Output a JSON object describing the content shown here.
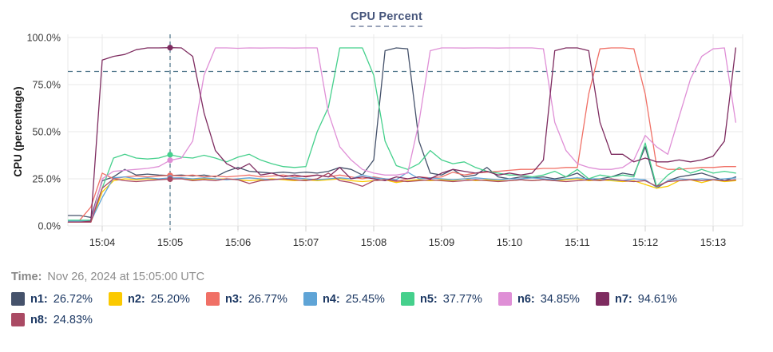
{
  "header": {
    "title": "CPU Percent"
  },
  "footer": {
    "time_label": "Time:",
    "time_value": "Nov 26, 2024 at 15:05:00 UTC"
  },
  "legend": {
    "items": [
      {
        "label": "n1:",
        "value": "26.72%",
        "color": "#45526b"
      },
      {
        "label": "n2:",
        "value": "25.20%",
        "color": "#fbc900"
      },
      {
        "label": "n3:",
        "value": "26.77%",
        "color": "#f07066"
      },
      {
        "label": "n4:",
        "value": "25.45%",
        "color": "#5fa4d6"
      },
      {
        "label": "n5:",
        "value": "37.77%",
        "color": "#45d08c"
      },
      {
        "label": "n6:",
        "value": "34.85%",
        "color": "#df8fd6"
      },
      {
        "label": "n7:",
        "value": "94.61%",
        "color": "#7e2c60"
      },
      {
        "label": "n8:",
        "value": "24.83%",
        "color": "#aa4a64"
      }
    ]
  },
  "chart_data": {
    "type": "line",
    "title": "CPU Percent",
    "ylabel": "CPU (percentage)",
    "ylim": [
      0,
      100
    ],
    "grid": true,
    "legend_position": "bottom",
    "y_ticks": [
      {
        "v": 0,
        "label": "0.0%"
      },
      {
        "v": 25,
        "label": "25.0%"
      },
      {
        "v": 50,
        "label": "50.0%"
      },
      {
        "v": 75,
        "label": "75.0%"
      },
      {
        "v": 100,
        "label": "100.0%"
      }
    ],
    "x_ticks": [
      {
        "t": 4,
        "label": "15:04"
      },
      {
        "t": 5,
        "label": "15:05"
      },
      {
        "t": 6,
        "label": "15:06"
      },
      {
        "t": 7,
        "label": "15:07"
      },
      {
        "t": 8,
        "label": "15:08"
      },
      {
        "t": 9,
        "label": "15:09"
      },
      {
        "t": 10,
        "label": "15:10"
      },
      {
        "t": 11,
        "label": "15:11"
      },
      {
        "t": 12,
        "label": "15:12"
      },
      {
        "t": 13,
        "label": "15:13"
      }
    ],
    "t_start": 3.5,
    "t_step": 0.1666667,
    "threshold_value": 82,
    "crosshair": {
      "t": 5,
      "index": 9,
      "label": "15:05"
    },
    "grid_color": "#e8e8e8",
    "guide_color": "#4a7187",
    "series": [
      {
        "name": "n1",
        "color": "#45526b",
        "values": [
          5.5,
          5.5,
          4.5,
          24,
          26,
          30,
          27,
          27.5,
          27,
          26.72,
          27,
          26.5,
          27,
          26,
          29,
          31,
          29,
          28.5,
          28,
          28.5,
          28,
          28.5,
          28,
          29,
          31,
          30,
          27,
          35,
          93,
          94.5,
          94,
          45,
          28,
          27,
          30,
          26,
          27,
          31,
          26,
          25,
          26,
          25.5,
          26,
          25,
          26,
          28,
          24,
          25,
          26,
          28,
          27,
          42,
          20,
          24,
          26,
          27,
          28,
          26,
          24,
          26
        ]
      },
      {
        "name": "n2",
        "color": "#fbc900",
        "values": [
          2,
          2,
          2,
          18,
          24,
          25,
          24.5,
          25,
          24.8,
          25.2,
          25,
          24.5,
          25,
          24.8,
          25,
          24.5,
          24,
          24.5,
          25,
          24.5,
          24,
          24.5,
          24,
          24.5,
          25,
          24,
          23.5,
          24,
          24.5,
          23,
          24,
          24.5,
          24,
          24.5,
          24,
          25,
          24,
          24.5,
          24,
          24,
          24.5,
          24,
          24.5,
          24,
          24.5,
          25,
          24,
          24.5,
          24,
          23.5,
          24,
          22,
          20,
          21,
          24,
          24.5,
          23,
          24.5,
          23.5,
          24
        ]
      },
      {
        "name": "n3",
        "color": "#f07066",
        "values": [
          2,
          3,
          10,
          28,
          25,
          26,
          26.5,
          26,
          26.5,
          26.77,
          26.5,
          27,
          26,
          26.5,
          26,
          26.5,
          27,
          26,
          26.5,
          27,
          26,
          26.5,
          27,
          26,
          27,
          26,
          25,
          26,
          25,
          23.5,
          25,
          26,
          25.5,
          26,
          28.5,
          27,
          28,
          28.5,
          29,
          29.5,
          30,
          30,
          30.5,
          30.5,
          31,
          31,
          70,
          94,
          94.5,
          94.5,
          94,
          70,
          32,
          30,
          30,
          30.5,
          31,
          31,
          31.5,
          31.5
        ]
      },
      {
        "name": "n4",
        "color": "#5fa4d6",
        "values": [
          2.5,
          2.5,
          2.5,
          15,
          25.5,
          26,
          25,
          25.5,
          25,
          25.45,
          25.5,
          25,
          25.5,
          25,
          24.5,
          25,
          25.5,
          25,
          24.5,
          25,
          25.5,
          25,
          24.5,
          25,
          25.5,
          25,
          27,
          25.5,
          25,
          24.5,
          28.5,
          25,
          25.5,
          25,
          24.5,
          25,
          25.5,
          25,
          24.5,
          25,
          25,
          25.5,
          25,
          24.5,
          25,
          25.5,
          25,
          25,
          24.5,
          24,
          25,
          24.5,
          20.5,
          24,
          25,
          24.5,
          25,
          24.5,
          25,
          25.5
        ]
      },
      {
        "name": "n5",
        "color": "#45d08c",
        "values": [
          3,
          3,
          3,
          20,
          36,
          38,
          36,
          35.5,
          36,
          37.77,
          36.5,
          36,
          37.5,
          36,
          34,
          36.5,
          38,
          35,
          33,
          31.5,
          31,
          31.5,
          50,
          63,
          94.5,
          94.5,
          94.5,
          80,
          45,
          32,
          30,
          33,
          40,
          35,
          33,
          34,
          31,
          29,
          28,
          27,
          27,
          26,
          27,
          29,
          26,
          30,
          25,
          27,
          26,
          27,
          26,
          44,
          21,
          27,
          31,
          28,
          30,
          28,
          29,
          28
        ]
      },
      {
        "name": "n6",
        "color": "#df8fd6",
        "values": [
          2,
          2,
          2,
          25,
          29,
          29.5,
          30,
          30.5,
          31.5,
          34.85,
          36,
          45,
          80,
          94.5,
          94.5,
          94.3,
          94.5,
          94.4,
          94.5,
          94.5,
          94.4,
          94.5,
          94.5,
          60,
          42,
          35,
          30,
          28,
          27,
          27,
          28,
          55,
          93,
          94.5,
          94.5,
          94.4,
          94.5,
          94.5,
          94.4,
          94.5,
          94.5,
          94.5,
          94,
          55,
          40,
          33,
          31,
          30,
          30,
          31,
          35,
          48,
          42,
          38,
          58,
          78,
          90,
          94,
          94.5,
          55
        ]
      },
      {
        "name": "n7",
        "color": "#7e2c60",
        "values": [
          2,
          2,
          2.5,
          88,
          90,
          91,
          93.5,
          94.5,
          94.5,
          94.61,
          94.5,
          90,
          60,
          40,
          33,
          30,
          33,
          27,
          28,
          26,
          27,
          26,
          27,
          26,
          31,
          25,
          26,
          25,
          24,
          26,
          25,
          26,
          25,
          28,
          30,
          29,
          28,
          29,
          27,
          28,
          27,
          28,
          35,
          93,
          94.5,
          94.5,
          93,
          55,
          38,
          38,
          34,
          36,
          34,
          34,
          35,
          34,
          35,
          37,
          45,
          94.5
        ]
      },
      {
        "name": "n8",
        "color": "#aa4a64",
        "values": [
          2,
          2,
          2,
          20,
          25,
          24,
          23.5,
          24,
          24.5,
          24.83,
          25,
          24,
          24.5,
          24,
          25,
          24.5,
          22.5,
          24,
          24.5,
          25,
          24.5,
          24,
          25,
          28,
          24,
          23,
          21,
          24,
          24.5,
          24,
          23.5,
          24,
          24.5,
          24,
          23.5,
          24,
          24.5,
          24,
          23.5,
          24,
          24.5,
          24,
          24.5,
          24,
          23.5,
          24,
          24.5,
          24,
          25,
          24,
          23.5,
          24,
          21,
          23.5,
          24,
          24.5,
          24,
          24.5,
          24,
          24.5
        ]
      }
    ]
  }
}
